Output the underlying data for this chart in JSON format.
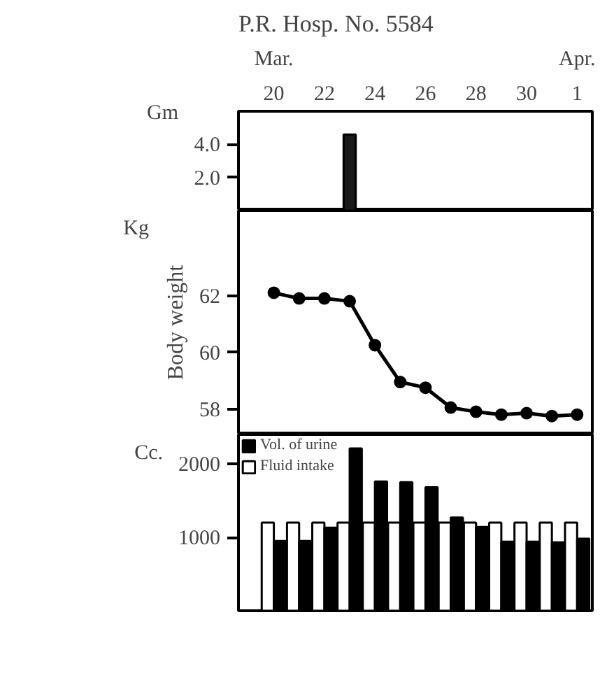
{
  "chart_data": [
    {
      "type": "bar",
      "title": "P.R. Hosp. No. 5584",
      "ylabel": "Gm",
      "categories": [
        "20",
        null,
        "22",
        null,
        "24",
        null,
        "26",
        null,
        "28",
        null,
        "30",
        null,
        "1"
      ],
      "values": [
        null,
        null,
        null,
        4.6,
        null,
        null,
        null,
        null,
        null,
        null,
        null,
        null,
        null
      ],
      "color": "#1a1a1a",
      "ylim": [
        0,
        6
      ],
      "yticks": [
        {
          "value": 2,
          "label": "2.0"
        },
        {
          "value": 4,
          "label": "4.0"
        }
      ],
      "grid": false,
      "annotations": [
        "Mar.",
        "Apr."
      ]
    },
    {
      "type": "line",
      "ylabel": "Body weight",
      "annotations": [
        "Kg"
      ],
      "categories": [
        "20",
        null,
        "22",
        null,
        "24",
        null,
        "26",
        null,
        "28",
        null,
        "30",
        null,
        "1"
      ],
      "values": [
        62.1,
        61.9,
        61.9,
        61.8,
        60.25,
        58.95,
        58.75,
        58.05,
        57.9,
        57.8,
        57.85,
        57.75,
        57.8
      ],
      "color": "#000000",
      "marker": "circle",
      "line_style": "solid",
      "ylim": [
        57.1,
        65
      ],
      "yticks": [
        58,
        60,
        62
      ],
      "tick_labels": "y",
      "grid": false
    },
    {
      "type": "bar",
      "annotations": [
        "Cc."
      ],
      "categories": [
        "20",
        null,
        "22",
        null,
        "24",
        null,
        "26",
        null,
        "28",
        null,
        "30",
        null,
        "1"
      ],
      "ylim": [
        0,
        2400
      ],
      "yticks": [
        1000,
        2000
      ],
      "tick_labels": "y",
      "grid": false,
      "legend": "top left",
      "series": [
        {
          "name": "Fluid intake",
          "color": "#ffffff",
          "values": [
            1200,
            1200,
            1200,
            1200,
            1200,
            1200,
            1200,
            1200,
            1200,
            1200,
            1200,
            1200,
            1200
          ]
        },
        {
          "name": "Vol. of urine",
          "color": "#000000",
          "values": [
            950,
            950,
            1130,
            2210,
            1760,
            1750,
            1680,
            1270,
            1140,
            940,
            940,
            930,
            980
          ]
        }
      ]
    }
  ]
}
